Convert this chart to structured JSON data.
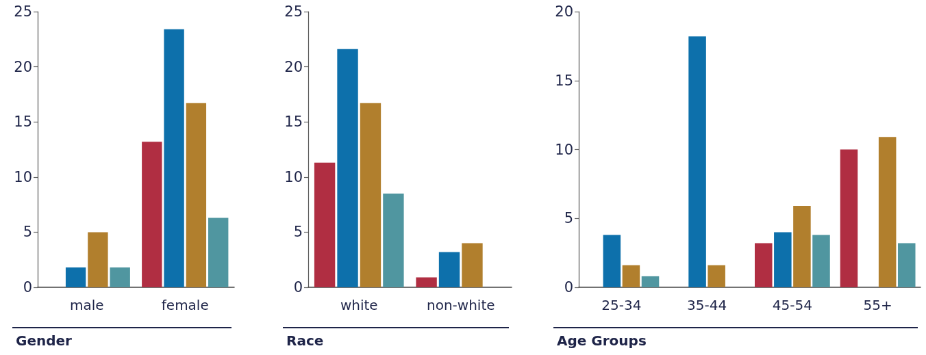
{
  "chart_data": [
    {
      "type": "bar",
      "title": "Gender",
      "categories": [
        "male",
        "female"
      ],
      "ylim": [
        0,
        25
      ],
      "yticks": [
        0,
        5,
        10,
        15,
        20,
        25
      ],
      "series": [
        {
          "color": "#b02e42",
          "values": [
            null,
            13.2
          ]
        },
        {
          "color": "#0d70ab",
          "values": [
            1.8,
            23.4
          ]
        },
        {
          "color": "#b17f2d",
          "values": [
            5.0,
            16.7
          ]
        },
        {
          "color": "#5096a0",
          "values": [
            1.8,
            6.3
          ]
        }
      ]
    },
    {
      "type": "bar",
      "title": "Race",
      "categories": [
        "white",
        "non-white"
      ],
      "ylim": [
        0,
        25
      ],
      "yticks": [
        0,
        5,
        10,
        15,
        20,
        25
      ],
      "series": [
        {
          "color": "#b02e42",
          "values": [
            11.3,
            0.9
          ]
        },
        {
          "color": "#0d70ab",
          "values": [
            21.6,
            3.2
          ]
        },
        {
          "color": "#b17f2d",
          "values": [
            16.7,
            4.0
          ]
        },
        {
          "color": "#5096a0",
          "values": [
            8.5,
            null
          ]
        }
      ]
    },
    {
      "type": "bar",
      "title": "Age Groups",
      "categories": [
        "25-34",
        "35-44",
        "45-54",
        "55+"
      ],
      "ylim": [
        0,
        20
      ],
      "yticks": [
        0,
        5,
        10,
        15,
        20
      ],
      "series": [
        {
          "color": "#b02e42",
          "values": [
            null,
            null,
            3.2,
            10.0
          ]
        },
        {
          "color": "#0d70ab",
          "values": [
            3.8,
            18.2,
            4.0,
            null
          ]
        },
        {
          "color": "#b17f2d",
          "values": [
            1.6,
            1.6,
            5.9,
            10.9
          ]
        },
        {
          "color": "#5096a0",
          "values": [
            0.8,
            null,
            3.8,
            3.2
          ]
        }
      ]
    }
  ]
}
